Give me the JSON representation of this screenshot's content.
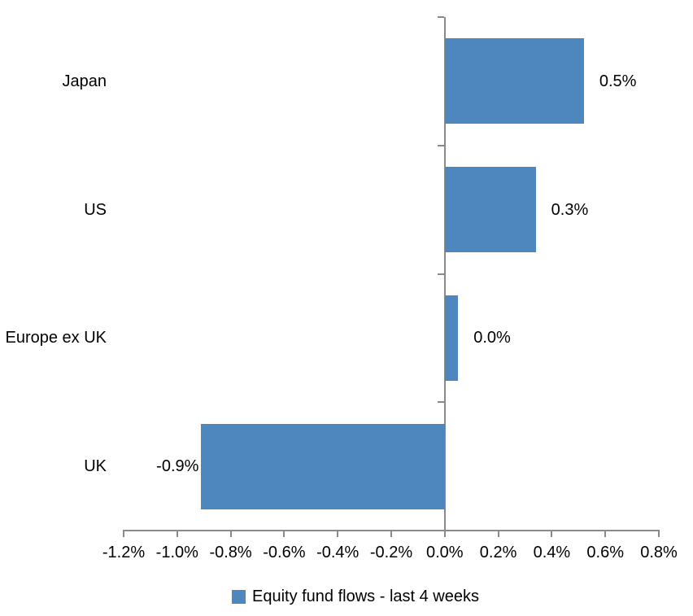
{
  "chart_data": {
    "type": "bar",
    "orientation": "horizontal",
    "title": "",
    "categories": [
      "Japan",
      "US",
      "Europe ex UK",
      "UK"
    ],
    "values": [
      0.5,
      0.3,
      0.0,
      -0.9
    ],
    "bar_values": [
      0.52,
      0.34,
      0.05,
      -0.91
    ],
    "data_labels": [
      "0.5%",
      "0.3%",
      "0.0%",
      "-0.9%"
    ],
    "x_ticks": [
      "-1.2%",
      "-1.0%",
      "-0.8%",
      "-0.6%",
      "-0.4%",
      "-0.2%",
      "0.0%",
      "0.2%",
      "0.4%",
      "0.6%",
      "0.8%"
    ],
    "x_tick_values": [
      -1.2,
      -1.0,
      -0.8,
      -0.6,
      -0.4,
      -0.2,
      0.0,
      0.2,
      0.4,
      0.6,
      0.8
    ],
    "xlim": [
      -1.2,
      0.8
    ],
    "grid": "off",
    "legend": {
      "label": "Equity fund flows - last 4 weeks",
      "position": "bottom"
    },
    "colors": {
      "bar": "#4E86BE",
      "axis": "#8A8A8A",
      "text": "#000000",
      "background": "#FFFFFF"
    }
  }
}
